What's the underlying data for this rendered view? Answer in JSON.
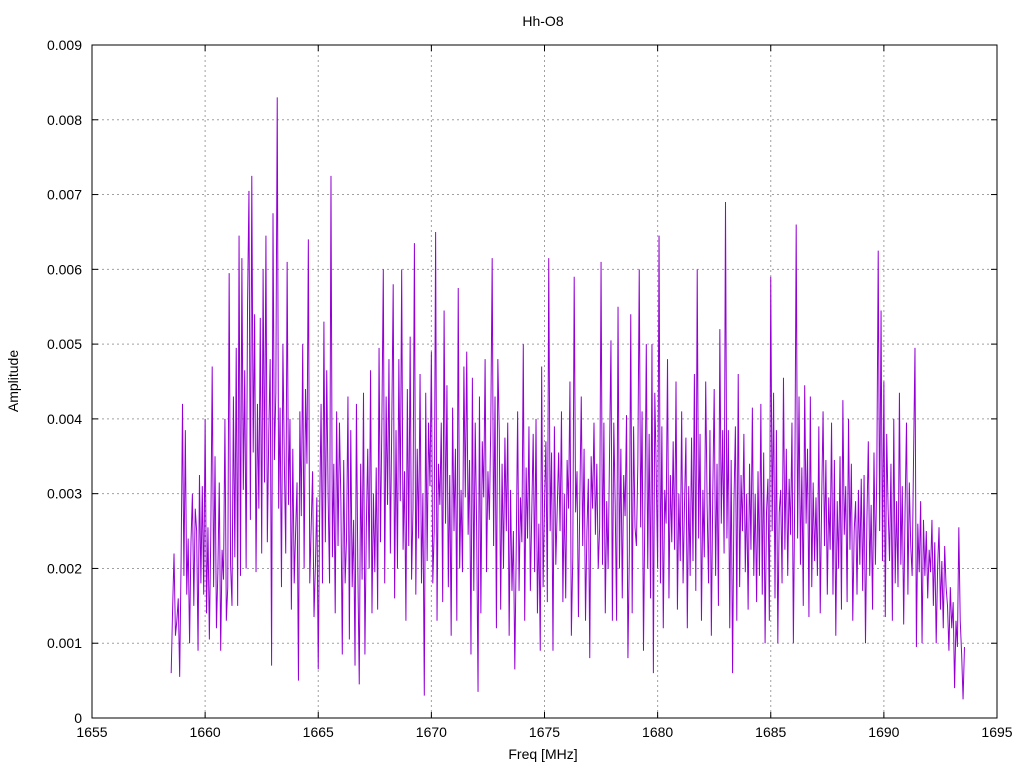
{
  "chart_data": {
    "type": "line",
    "title": "Hh-O8",
    "xlabel": "Freq [MHz]",
    "ylabel": "Amplitude",
    "xlim": [
      1655,
      1695
    ],
    "ylim": [
      0,
      0.009
    ],
    "xticks": [
      1655,
      1660,
      1665,
      1670,
      1675,
      1680,
      1685,
      1690,
      1695
    ],
    "xtick_labels": [
      "1655",
      "1660",
      "1665",
      "1670",
      "1675",
      "1680",
      "1685",
      "1690",
      "1695"
    ],
    "yticks": [
      0,
      0.001,
      0.002,
      0.003,
      0.004,
      0.005,
      0.006,
      0.007,
      0.008,
      0.009
    ],
    "ytick_labels": [
      "0",
      "0.001",
      "0.002",
      "0.003",
      "0.004",
      "0.005",
      "0.006",
      "0.007",
      "0.008",
      "0.009"
    ],
    "grid": true,
    "line_color": "#9400d3",
    "x_step": 0.0625,
    "series": [
      {
        "x_start": 1658.5,
        "values": [
          0.0006,
          0.00145,
          0.0022,
          0.0011,
          0.0013,
          0.0016,
          0.00055,
          0.0021,
          0.0042,
          0.0019,
          0.00385,
          0.00165,
          0.0024,
          0.001,
          0.00235,
          0.003,
          0.0015,
          0.0028,
          0.0025,
          0.0009,
          0.00325,
          0.0018,
          0.0031,
          0.00165,
          0.004,
          0.0014,
          0.00255,
          0.00105,
          0.00245,
          0.0047,
          0.00175,
          0.0035,
          0.0012,
          0.00195,
          0.00315,
          0.0009,
          0.00225,
          0.00185,
          0.004,
          0.0013,
          0.00175,
          0.00595,
          0.00205,
          0.0015,
          0.0043,
          0.00215,
          0.00495,
          0.0015,
          0.00645,
          0.0019,
          0.00615,
          0.00305,
          0.00465,
          0.002,
          0.00555,
          0.00705,
          0.00265,
          0.00725,
          0.00355,
          0.0054,
          0.00195,
          0.0042,
          0.0028,
          0.00535,
          0.0022,
          0.006,
          0.00315,
          0.00645,
          0.00235,
          0.0038,
          0.0048,
          0.0007,
          0.00675,
          0.00345,
          0.00435,
          0.0083,
          0.0028,
          0.00415,
          0.00175,
          0.005,
          0.00345,
          0.0022,
          0.0061,
          0.00285,
          0.004,
          0.00145,
          0.0036,
          0.0018,
          0.0025,
          0.00315,
          0.0005,
          0.0041,
          0.0027,
          0.005,
          0.002,
          0.0044,
          0.0034,
          0.0064,
          0.0018,
          0.00255,
          0.0033,
          0.00135,
          0.00205,
          0.00295,
          0.00065,
          0.00275,
          0.0042,
          0.0018,
          0.0053,
          0.00235,
          0.00465,
          0.00295,
          0.0018,
          0.00725,
          0.00215,
          0.0034,
          0.0014,
          0.0041,
          0.0023,
          0.00395,
          0.0029,
          0.00085,
          0.00345,
          0.0018,
          0.0024,
          0.0043,
          0.00105,
          0.00385,
          0.00175,
          0.00265,
          0.0007,
          0.0042,
          0.002,
          0.00045,
          0.0034,
          0.00185,
          0.00435,
          0.00085,
          0.00255,
          0.0036,
          0.002,
          0.00465,
          0.0014,
          0.003,
          0.00195,
          0.00335,
          0.00145,
          0.00495,
          0.00235,
          0.00395,
          0.006,
          0.0018,
          0.0043,
          0.00285,
          0.0048,
          0.0022,
          0.00395,
          0.0058,
          0.0016,
          0.00385,
          0.002,
          0.0048,
          0.0029,
          0.006,
          0.00225,
          0.0033,
          0.0013,
          0.0044,
          0.0023,
          0.0051,
          0.00185,
          0.0028,
          0.00635,
          0.00165,
          0.0036,
          0.0024,
          0.0046,
          0.0018,
          0.003,
          0.0003,
          0.00435,
          0.0021,
          0.00395,
          0.0031,
          0.0049,
          0.0018,
          0.0025,
          0.0065,
          0.0013,
          0.0034,
          0.00285,
          0.00395,
          0.00155,
          0.00545,
          0.0026,
          0.00445,
          0.00175,
          0.00325,
          0.0011,
          0.00415,
          0.0025,
          0.0036,
          0.0013,
          0.00575,
          0.002,
          0.00305,
          0.00195,
          0.0047,
          0.00295,
          0.0049,
          0.00245,
          0.00345,
          0.00085,
          0.00455,
          0.0017,
          0.00395,
          0.00255,
          0.00035,
          0.0043,
          0.0014,
          0.0037,
          0.00295,
          0.0048,
          0.00195,
          0.0033,
          0.00265,
          0.0039,
          0.00615,
          0.0023,
          0.0043,
          0.0012,
          0.0048,
          0.00385,
          0.00145,
          0.0034,
          0.002,
          0.00375,
          0.0025,
          0.00395,
          0.0011,
          0.00305,
          0.0017,
          0.0025,
          0.00065,
          0.00225,
          0.0041,
          0.0017,
          0.00295,
          0.00235,
          0.005,
          0.0013,
          0.00335,
          0.0024,
          0.0039,
          0.0017,
          0.00275,
          0.0038,
          0.00195,
          0.004,
          0.0014,
          0.0026,
          0.0009,
          0.0047,
          0.00175,
          0.00285,
          0.0037,
          0.00155,
          0.00615,
          0.0025,
          0.00355,
          0.0009,
          0.0039,
          0.00205,
          0.0028,
          0.00355,
          0.0025,
          0.0041,
          0.00155,
          0.003,
          0.0016,
          0.00345,
          0.0028,
          0.0045,
          0.0011,
          0.00215,
          0.0059,
          0.00275,
          0.0033,
          0.00135,
          0.00295,
          0.0043,
          0.0023,
          0.0036,
          0.0013,
          0.0025,
          0.0032,
          0.0008,
          0.0035,
          0.0028,
          0.00395,
          0.00245,
          0.0034,
          0.002,
          0.00255,
          0.0061,
          0.00205,
          0.00395,
          0.0014,
          0.0029,
          0.002,
          0.00355,
          0.00505,
          0.0013,
          0.00395,
          0.00285,
          0.0013,
          0.0055,
          0.002,
          0.0036,
          0.0016,
          0.00325,
          0.0027,
          0.00405,
          0.0008,
          0.0022,
          0.0054,
          0.0014,
          0.0039,
          0.00255,
          0.0023,
          0.0034,
          0.006,
          0.00255,
          0.0041,
          0.0009,
          0.0028,
          0.005,
          0.002,
          0.0038,
          0.0016,
          0.005,
          0.0006,
          0.00435,
          0.0033,
          0.002,
          0.00645,
          0.0018,
          0.0039,
          0.0012,
          0.00305,
          0.0026,
          0.0048,
          0.0016,
          0.00325,
          0.00235,
          0.0037,
          0.00225,
          0.0045,
          0.00145,
          0.003,
          0.0021,
          0.0041,
          0.0018,
          0.00285,
          0.00375,
          0.0012,
          0.0031,
          0.0019,
          0.00375,
          0.0021,
          0.0046,
          0.0017,
          0.006,
          0.0024,
          0.0038,
          0.0013,
          0.00305,
          0.00215,
          0.0045,
          0.00285,
          0.0018,
          0.00385,
          0.0011,
          0.003,
          0.0044,
          0.0019,
          0.0034,
          0.0015,
          0.0052,
          0.0026,
          0.00385,
          0.0022,
          0.0069,
          0.0024,
          0.00385,
          0.0012,
          0.00345,
          0.0006,
          0.0029,
          0.0039,
          0.0013,
          0.0046,
          0.00175,
          0.00325,
          0.0025,
          0.0038,
          0.00195,
          0.003,
          0.00145,
          0.0034,
          0.00225,
          0.00415,
          0.0019,
          0.003,
          0.00155,
          0.0033,
          0.0019,
          0.0042,
          0.00165,
          0.00355,
          0.001,
          0.00275,
          0.0032,
          0.0013,
          0.0059,
          0.0025,
          0.00435,
          0.0016,
          0.00385,
          0.001,
          0.00275,
          0.00305,
          0.0018,
          0.00455,
          0.00225,
          0.0036,
          0.0019,
          0.0032,
          0.00245,
          0.00395,
          0.001,
          0.00305,
          0.0066,
          0.0024,
          0.0043,
          0.00205,
          0.00335,
          0.0015,
          0.00445,
          0.0026,
          0.0036,
          0.00135,
          0.0043,
          0.00175,
          0.00315,
          0.0021,
          0.00295,
          0.0019,
          0.0039,
          0.0014,
          0.0029,
          0.0041,
          0.0023,
          0.00345,
          0.00165,
          0.00295,
          0.00225,
          0.00395,
          0.00165,
          0.00345,
          0.0011,
          0.0029,
          0.002,
          0.0035,
          0.00145,
          0.00425,
          0.00245,
          0.0031,
          0.00155,
          0.004,
          0.00225,
          0.0034,
          0.0013,
          0.0025,
          0.0029,
          0.00165,
          0.00305,
          0.00205,
          0.0032,
          0.0017,
          0.00325,
          0.001,
          0.00265,
          0.0037,
          0.0019,
          0.00285,
          0.00145,
          0.00355,
          0.00205,
          0.00325,
          0.00625,
          0.0025,
          0.00545,
          0.0021,
          0.0045,
          0.00135,
          0.0038,
          0.0028,
          0.0021,
          0.0034,
          0.0013,
          0.004,
          0.0018,
          0.0029,
          0.00175,
          0.00435,
          0.00205,
          0.0031,
          0.00125,
          0.0028,
          0.00395,
          0.00165,
          0.00315,
          0.0023,
          0.0019,
          0.0035,
          0.00495,
          0.00095,
          0.0026,
          0.00195,
          0.0029,
          0.001,
          0.00265,
          0.0019,
          0.0025,
          0.0016,
          0.00225,
          0.00195,
          0.00265,
          0.0015,
          0.00235,
          0.001,
          0.002,
          0.00255,
          0.00145,
          0.0021,
          0.0012,
          0.0023,
          0.00175,
          0.0015,
          0.0009,
          0.00175,
          0.0012,
          0.00155,
          0.0004,
          0.0013,
          0.00095,
          0.00255,
          0.0013,
          0.00085,
          0.00025,
          0.00095
        ]
      }
    ]
  }
}
